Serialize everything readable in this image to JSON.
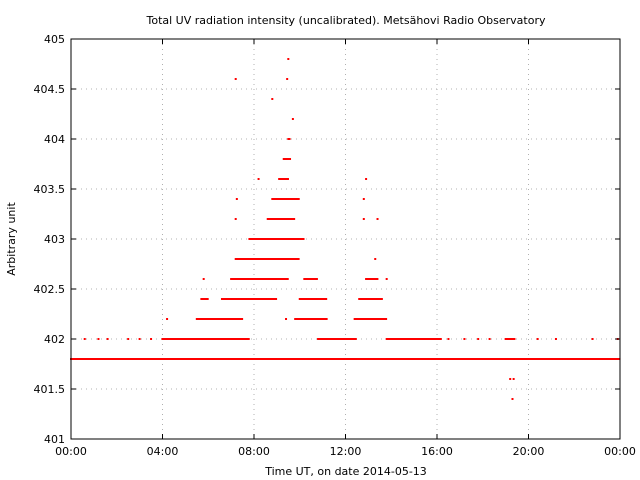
{
  "chart_data": {
    "type": "scatter",
    "title": "Total UV radiation intensity (uncalibrated). Metsähovi Radio Observatory",
    "xlabel": "Time UT, on date 2014-05-13",
    "ylabel": "Arbitrary unit",
    "xlim": [
      0,
      24
    ],
    "ylim": [
      401,
      405
    ],
    "xticks": [
      0,
      4,
      8,
      12,
      16,
      20,
      24
    ],
    "xtick_labels": [
      "00:00",
      "04:00",
      "08:00",
      "12:00",
      "16:00",
      "20:00",
      "00:00"
    ],
    "yticks": [
      401,
      401.5,
      402,
      402.5,
      403,
      403.5,
      404,
      404.5,
      405
    ],
    "ytick_labels": [
      "401",
      "401.5",
      "402",
      "402.5",
      "403",
      "403.5",
      "404",
      "404.5",
      "405"
    ],
    "grid": true,
    "marker_color": "#ff0000",
    "series": [
      {
        "points": [
          {
            "x_from": 0.0,
            "x_to": 24.0,
            "y": 401.8
          },
          {
            "x_from": 4.0,
            "x_to": 5.6,
            "y": 402.0
          },
          {
            "x_from": 5.6,
            "x_to": 7.0,
            "y": 402.0
          },
          {
            "x_from": 7.0,
            "x_to": 7.8,
            "y": 402.0
          },
          {
            "x_from": 10.8,
            "x_to": 12.5,
            "y": 402.0
          },
          {
            "x_from": 13.8,
            "x_to": 16.2,
            "y": 402.0
          },
          {
            "x_from": 19.0,
            "x_to": 19.4,
            "y": 402.0
          },
          {
            "x_from": 5.5,
            "x_to": 7.5,
            "y": 402.2
          },
          {
            "x_from": 9.8,
            "x_to": 11.2,
            "y": 402.2
          },
          {
            "x_from": 12.4,
            "x_to": 13.8,
            "y": 402.2
          },
          {
            "x_from": 5.7,
            "x_to": 6.0,
            "y": 402.4
          },
          {
            "x_from": 6.6,
            "x_to": 9.0,
            "y": 402.4
          },
          {
            "x_from": 10.0,
            "x_to": 11.2,
            "y": 402.4
          },
          {
            "x_from": 12.6,
            "x_to": 13.6,
            "y": 402.4
          },
          {
            "x_from": 7.0,
            "x_to": 9.5,
            "y": 402.6
          },
          {
            "x_from": 10.2,
            "x_to": 10.8,
            "y": 402.6
          },
          {
            "x_from": 12.9,
            "x_to": 13.4,
            "y": 402.6
          },
          {
            "x_from": 7.2,
            "x_to": 10.0,
            "y": 402.8
          },
          {
            "x_from": 7.8,
            "x_to": 10.2,
            "y": 403.0
          },
          {
            "x_from": 8.6,
            "x_to": 9.8,
            "y": 403.2
          },
          {
            "x_from": 8.8,
            "x_to": 10.0,
            "y": 403.4
          },
          {
            "x_from": 9.1,
            "x_to": 9.5,
            "y": 403.6
          },
          {
            "x_from": 9.3,
            "x_to": 9.6,
            "y": 403.8
          },
          {
            "x_from": 9.5,
            "x_to": 9.6,
            "y": 404.0
          }
        ],
        "isolated": [
          [
            0.6,
            402.0
          ],
          [
            1.2,
            402.0
          ],
          [
            1.6,
            402.0
          ],
          [
            2.5,
            402.0
          ],
          [
            3.0,
            402.0
          ],
          [
            3.5,
            402.0
          ],
          [
            4.2,
            402.2
          ],
          [
            5.0,
            402.0
          ],
          [
            5.3,
            401.8
          ],
          [
            6.9,
            401.8
          ],
          [
            7.2,
            403.2
          ],
          [
            7.25,
            403.4
          ],
          [
            7.2,
            404.6
          ],
          [
            8.8,
            404.4
          ],
          [
            9.5,
            404.8
          ],
          [
            9.45,
            404.6
          ],
          [
            9.7,
            404.2
          ],
          [
            8.2,
            403.6
          ],
          [
            9.4,
            402.2
          ],
          [
            5.8,
            402.6
          ],
          [
            12.9,
            403.6
          ],
          [
            12.8,
            403.4
          ],
          [
            12.8,
            403.2
          ],
          [
            13.3,
            402.8
          ],
          [
            13.4,
            403.2
          ],
          [
            13.8,
            402.6
          ],
          [
            16.5,
            402.0
          ],
          [
            17.2,
            402.0
          ],
          [
            17.8,
            402.0
          ],
          [
            18.3,
            402.0
          ],
          [
            19.2,
            401.6
          ],
          [
            19.35,
            401.6
          ],
          [
            19.3,
            401.4
          ],
          [
            20.4,
            402.0
          ],
          [
            21.2,
            402.0
          ],
          [
            22.8,
            402.0
          ],
          [
            23.9,
            402.0
          ]
        ]
      }
    ]
  }
}
